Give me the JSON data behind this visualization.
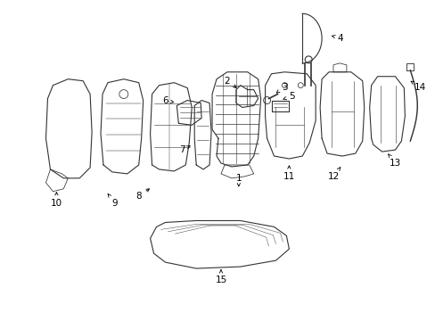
{
  "background_color": "#ffffff",
  "line_color": "#333333",
  "label_color": "#000000",
  "fig_width": 4.89,
  "fig_height": 3.6,
  "dpi": 100
}
